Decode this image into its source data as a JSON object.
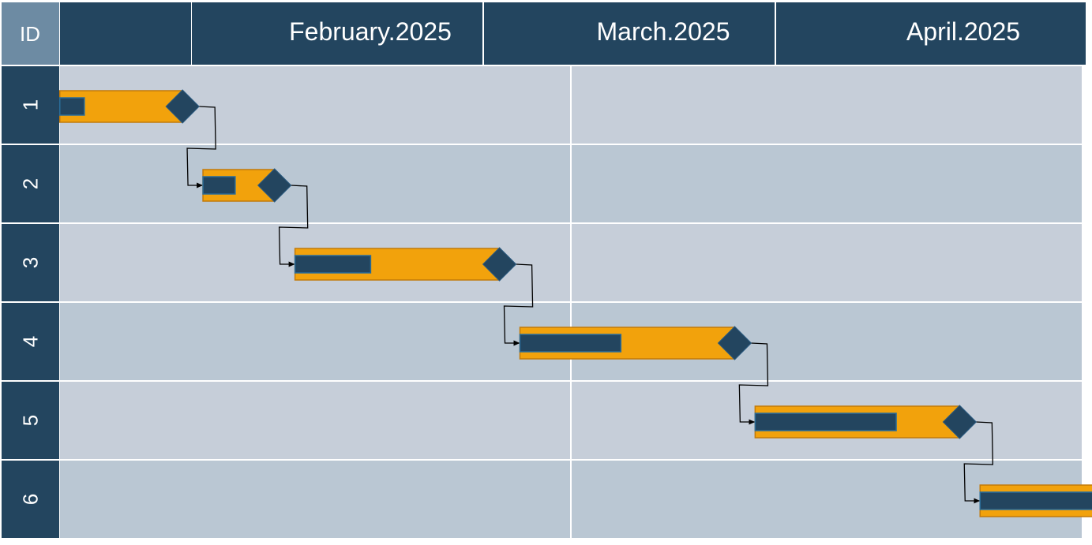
{
  "header": {
    "id_label": "ID",
    "months": [
      "",
      "February.2025",
      "March.2025",
      "April.2025"
    ]
  },
  "chart_data": {
    "type": "gantt",
    "title": "",
    "tasks": [
      {
        "id": "1",
        "start": "2025-01-27",
        "end": "2025-02-08",
        "progress": 0.2
      },
      {
        "id": "2",
        "start": "2025-02-10",
        "end": "2025-02-17",
        "progress": 0.45
      },
      {
        "id": "3",
        "start": "2025-02-19",
        "end": "2025-03-11",
        "progress": 0.37
      },
      {
        "id": "4",
        "start": "2025-03-13",
        "end": "2025-04-03",
        "progress": 0.47
      },
      {
        "id": "5",
        "start": "2025-04-05",
        "end": "2025-04-25",
        "progress": 0.69
      },
      {
        "id": "6",
        "start": "2025-04-27",
        "end": "2025-05-15",
        "progress": 1.0
      }
    ],
    "dependencies": [
      [
        "1",
        "2"
      ],
      [
        "2",
        "3"
      ],
      [
        "3",
        "4"
      ],
      [
        "4",
        "5"
      ],
      [
        "5",
        "6"
      ]
    ],
    "colors": {
      "header_bg": "#23455f",
      "id_header_bg": "#6d8ba3",
      "row_even": "#c6ced9",
      "row_odd": "#bac7d3",
      "bar": "#f2a20c",
      "bar_border": "#c27a0a",
      "progress": "#23455f",
      "progress_border": "#2a6d9a",
      "milestone": "#23455f",
      "grid": "#ffffff",
      "link": "#000000"
    }
  }
}
